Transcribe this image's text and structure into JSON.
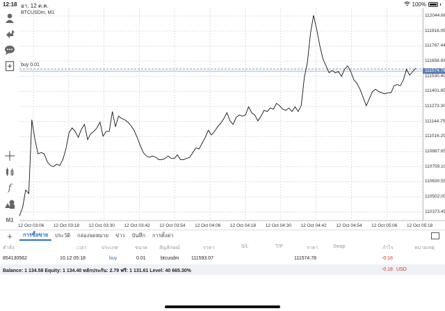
{
  "status_bar": {
    "time": "12:18",
    "date": "อา. 12 ต.ค.",
    "battery": "100%"
  },
  "chart": {
    "title": "BTCUSDm, M1",
    "buy_line_label": "buy 0.01",
    "current_price_label": "111574.78"
  },
  "chart_data": {
    "type": "line",
    "title": "BTCUSDm, M1",
    "xlabel": "",
    "ylabel": "",
    "x_tick_labels": [
      "12 Oct 03:06",
      "12 Oct 03:18",
      "12 Oct 03:30",
      "12 Oct 03:42",
      "12 Oct 03:54",
      "12 Oct 04:06",
      "12 Oct 04:18",
      "12 Oct 04:30",
      "12 Oct 04:42",
      "12 Oct 04:54",
      "12 Oct 05:06",
      "12 Oct 05:18"
    ],
    "y_tick_labels": [
      "112044.66",
      "111916.05",
      "111787.44",
      "111658.93",
      "111530.40",
      "111401.85",
      "111273.30",
      "111144.75",
      "111016.20",
      "110887.65",
      "110759.10",
      "110630.55",
      "110502.00",
      "110373.45"
    ],
    "ylim": [
      110300,
      112110
    ],
    "buy_level": 111593.07,
    "current_price": 111574.78,
    "grid": true,
    "series": [
      {
        "values": [
          110340,
          110410,
          110560,
          110530,
          111160,
          110990,
          110870,
          110880,
          110870,
          110800,
          110770,
          110760,
          110780,
          110770,
          110820,
          110910,
          111050,
          111090,
          111060,
          111010,
          111080,
          111120,
          110990,
          111040,
          111060,
          111090,
          111140,
          111020,
          111060,
          111060,
          111230,
          111100,
          111190,
          111170,
          111160,
          111140,
          111110,
          111070,
          111010,
          110940,
          110880,
          110850,
          110840,
          110850,
          110840,
          110820,
          110820,
          110830,
          110850,
          110830,
          110830,
          110860,
          110820,
          110820,
          110830,
          110840,
          110880,
          110920,
          110910,
          110960,
          111010,
          111070,
          111030,
          111060,
          111100,
          111130,
          111170,
          111220,
          111150,
          111120,
          111180,
          111200,
          111190,
          111200,
          111270,
          111220,
          111200,
          111150,
          111190,
          111240,
          111230,
          111260,
          111250,
          111300,
          111280,
          111250,
          111240,
          111260,
          111230,
          111270,
          111230,
          111280,
          111520,
          111650,
          111900,
          112050,
          111930,
          111790,
          111680,
          111620,
          111560,
          111580,
          111560,
          111570,
          111530,
          111590,
          111620,
          111570,
          111500,
          111470,
          111420,
          111350,
          111280,
          111340,
          111400,
          111420,
          111400,
          111390,
          111380,
          111390,
          111390,
          111450,
          111460,
          111450,
          111500,
          111590,
          111540,
          111570,
          111600
        ]
      }
    ]
  },
  "tabs": [
    {
      "label": "การซื้อขาย",
      "active": true
    },
    {
      "label": "ประวัติ"
    },
    {
      "label": "กล่องจดหมาย"
    },
    {
      "label": "ข่าว"
    },
    {
      "label": "บันทึก"
    },
    {
      "label": "การตั้งค่า"
    }
  ],
  "table": {
    "headers": [
      "คำสั่ง",
      "เวลา",
      "ประเภท",
      "ขนาด",
      "สัญลักษณ์",
      "ราคา",
      "S/L",
      "T/P",
      "ราคา",
      "Swap",
      "กำไร",
      "หมายเหตุ"
    ],
    "row": {
      "order": "854130562",
      "time": "10.12 05:18",
      "type": "buy",
      "size": "0.01",
      "symbol": "btcusdm",
      "open_price": "111593.07",
      "sl": "",
      "tp": "",
      "price": "111574.78",
      "swap": "",
      "profit": "-0.18",
      "comment": ""
    }
  },
  "balance": {
    "summary": "Balance: 1 134.58 Equity: 1 134.40 หลักประกัน: 2.79 ฟรี: 1 131.61 Level: 40 665.30%",
    "profit": "-0.18",
    "currency": "USD"
  }
}
